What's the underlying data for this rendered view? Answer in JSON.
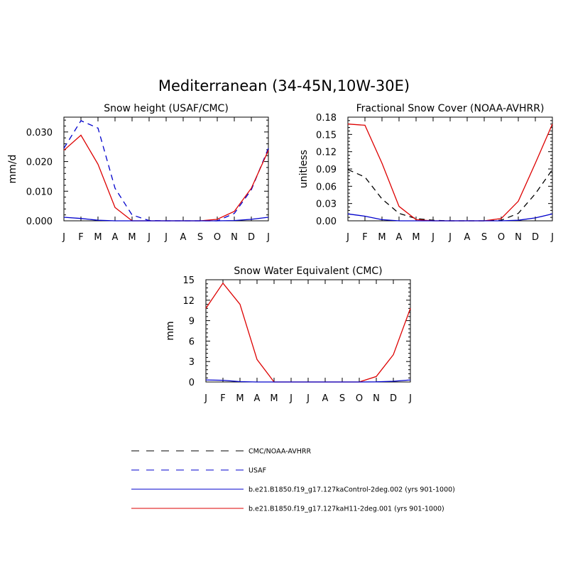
{
  "figure_title": "Mediterranean (34-45N,10W-30E)",
  "colors": {
    "obs_black": "#000000",
    "usaf_blue": "#0000cc",
    "control_blue": "#0000cc",
    "h11_red": "#dd0000"
  },
  "legend": [
    {
      "label": "CMC/NOAA-AVHRR",
      "style": "dashed",
      "color_key": "obs_black"
    },
    {
      "label": "USAF",
      "style": "dashed",
      "color_key": "usaf_blue"
    },
    {
      "label": "b.e21.B1850.f19_g17.127kaControl-2deg.002 (yrs 901-1000)",
      "style": "solid",
      "color_key": "control_blue"
    },
    {
      "label": "b.e21.B1850.f19_g17.127kaH11-2deg.001 (yrs 901-1000)",
      "style": "solid",
      "color_key": "h11_red"
    }
  ],
  "chart_data": [
    {
      "id": "snow-height",
      "type": "line",
      "title": "Snow height (USAF/CMC)",
      "xlabel": "",
      "ylabel": "mm/d",
      "categories": [
        "J",
        "F",
        "M",
        "A",
        "M",
        "J",
        "J",
        "A",
        "S",
        "O",
        "N",
        "D",
        "J"
      ],
      "ylim": [
        0,
        0.035
      ],
      "yticks": [
        0.0,
        0.01,
        0.02,
        0.03
      ],
      "ytick_labels": [
        "0.000",
        "0.010",
        "0.020",
        "0.030"
      ],
      "series": [
        {
          "name": "USAF",
          "style": "dashed",
          "color_key": "usaf_blue",
          "values": [
            0.0245,
            0.0338,
            0.0313,
            0.011,
            0.002,
            0.0001,
            0,
            0,
            0,
            0,
            0.0025,
            0.0105,
            0.0245
          ]
        },
        {
          "name": "b.e21.B1850.f19_g17.127kaH11-2deg.001 (yrs 901-1000)",
          "style": "solid",
          "color_key": "h11_red",
          "values": [
            0.0238,
            0.0289,
            0.0191,
            0.0045,
            0,
            0,
            0,
            0,
            0,
            0.0005,
            0.0032,
            0.011,
            0.0238
          ]
        },
        {
          "name": "b.e21.B1850.f19_g17.127kaControl-2deg.002 (yrs 901-1000)",
          "style": "solid",
          "color_key": "control_blue",
          "values": [
            0.0012,
            0.0008,
            0.0002,
            0,
            0,
            0,
            0,
            0,
            0,
            0,
            0.0001,
            0.0005,
            0.0012
          ]
        }
      ]
    },
    {
      "id": "fractional-snow-cover",
      "type": "line",
      "title": "Fractional Snow Cover (NOAA-AVHRR)",
      "xlabel": "",
      "ylabel": "unitless",
      "categories": [
        "J",
        "F",
        "M",
        "A",
        "M",
        "J",
        "J",
        "A",
        "S",
        "O",
        "N",
        "D",
        "J"
      ],
      "ylim": [
        0,
        0.18
      ],
      "yticks": [
        0.0,
        0.03,
        0.06,
        0.09,
        0.12,
        0.15,
        0.18
      ],
      "ytick_labels": [
        "0.00",
        "0.03",
        "0.06",
        "0.09",
        "0.12",
        "0.15",
        "0.18"
      ],
      "series": [
        {
          "name": "CMC/NOAA-AVHRR",
          "style": "dashed",
          "color_key": "obs_black",
          "values": [
            0.089,
            0.076,
            0.038,
            0.013,
            0.004,
            0.001,
            0,
            0,
            0,
            0.001,
            0.013,
            0.047,
            0.089
          ]
        },
        {
          "name": "b.e21.B1850.f19_g17.127kaH11-2deg.001 (yrs 901-1000)",
          "style": "solid",
          "color_key": "h11_red",
          "values": [
            0.168,
            0.166,
            0.1,
            0.025,
            0.002,
            0,
            0,
            0,
            0,
            0.004,
            0.034,
            0.1,
            0.168
          ]
        },
        {
          "name": "b.e21.B1850.f19_g17.127kaControl-2deg.002 (yrs 901-1000)",
          "style": "solid",
          "color_key": "control_blue",
          "values": [
            0.012,
            0.008,
            0.002,
            0,
            0,
            0,
            0,
            0,
            0,
            0,
            0.001,
            0.005,
            0.012
          ]
        }
      ]
    },
    {
      "id": "snow-water-equivalent",
      "type": "line",
      "title": "Snow Water Equivalent (CMC)",
      "xlabel": "",
      "ylabel": "mm",
      "categories": [
        "J",
        "F",
        "M",
        "A",
        "M",
        "J",
        "J",
        "A",
        "S",
        "O",
        "N",
        "D",
        "J"
      ],
      "ylim": [
        0,
        15
      ],
      "yticks": [
        0,
        3,
        6,
        9,
        12,
        15
      ],
      "ytick_labels": [
        "0",
        "3",
        "6",
        "9",
        "12",
        "15"
      ],
      "series": [
        {
          "name": "b.e21.B1850.f19_g17.127kaH11-2deg.001 (yrs 901-1000)",
          "style": "solid",
          "color_key": "h11_red",
          "values": [
            10.8,
            14.5,
            11.4,
            3.3,
            0,
            0,
            0,
            0,
            0,
            0,
            0.8,
            4.0,
            10.8
          ]
        },
        {
          "name": "b.e21.B1850.f19_g17.127kaControl-2deg.002 (yrs 901-1000)",
          "style": "solid",
          "color_key": "control_blue",
          "values": [
            0.3,
            0.25,
            0.05,
            0,
            0,
            0,
            0,
            0,
            0,
            0,
            0.02,
            0.1,
            0.3
          ]
        }
      ]
    }
  ]
}
